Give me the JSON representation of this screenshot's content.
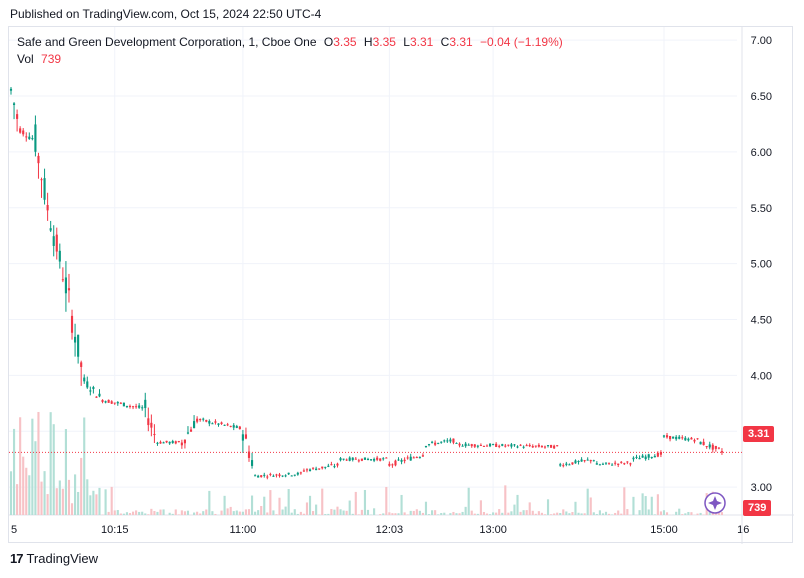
{
  "published": "Published on TradingView.com, Oct 15, 2024 22:50 UTC-4",
  "legend": {
    "symbol": "Safe and Green Development Corporation, 1, Cboe One",
    "o_label": "O",
    "o_value": "3.35",
    "h_label": "H",
    "h_value": "3.35",
    "l_label": "L",
    "l_value": "3.31",
    "c_label": "C",
    "c_value": "3.31",
    "change": "−0.04 (−1.19%)",
    "vol_label": "Vol",
    "vol_value": "739"
  },
  "brand": {
    "name": "TradingView",
    "logo": "17"
  },
  "colors": {
    "up": "#089981",
    "down": "#f23645",
    "up_vol": "#b2dfd6",
    "down_vol": "#f7c2c6",
    "grid": "#f0f3fa",
    "axis_text": "#131722"
  },
  "chart_data": {
    "type": "candlestick",
    "ylim": [
      2.75,
      7.1
    ],
    "y_ticks": [
      "3.00",
      "3.50",
      "4.00",
      "4.50",
      "5.00",
      "5.50",
      "6.00",
      "6.50",
      "7.00"
    ],
    "x_ticks": [
      "5",
      "10:15",
      "11:00",
      "12:03",
      "13:00",
      "15:00",
      "16"
    ],
    "last_price": "3.31",
    "last_volume": "739",
    "x_range": [
      0,
      234
    ],
    "x_tick_positions": [
      0,
      34,
      76,
      124,
      158,
      214,
      240
    ],
    "segments": [
      {
        "from": 0,
        "to": 3,
        "start": 6.55,
        "end": 6.2
      },
      {
        "from": 3,
        "to": 8,
        "start": 6.2,
        "end": 6.1
      },
      {
        "from": 8,
        "to": 12,
        "start": 6.1,
        "end": 5.5
      },
      {
        "from": 12,
        "to": 18,
        "start": 5.5,
        "end": 4.8
      },
      {
        "from": 18,
        "to": 24,
        "start": 4.8,
        "end": 3.95
      },
      {
        "from": 24,
        "to": 30,
        "start": 3.95,
        "end": 3.78
      },
      {
        "from": 30,
        "to": 44,
        "start": 3.78,
        "end": 3.7
      },
      {
        "from": 44,
        "to": 48,
        "start": 3.7,
        "end": 3.4
      },
      {
        "from": 48,
        "to": 56,
        "start": 3.4,
        "end": 3.4
      },
      {
        "from": 56,
        "to": 62,
        "start": 3.4,
        "end": 3.65
      },
      {
        "from": 62,
        "to": 76,
        "start": 3.6,
        "end": 3.52
      },
      {
        "from": 76,
        "to": 80,
        "start": 3.5,
        "end": 3.15
      },
      {
        "from": 80,
        "to": 96,
        "start": 3.1,
        "end": 3.12
      },
      {
        "from": 96,
        "to": 108,
        "start": 3.15,
        "end": 3.2
      },
      {
        "from": 108,
        "to": 124,
        "start": 3.25,
        "end": 3.25
      },
      {
        "from": 124,
        "to": 136,
        "start": 3.2,
        "end": 3.3
      },
      {
        "from": 136,
        "to": 146,
        "start": 3.38,
        "end": 3.42
      },
      {
        "from": 146,
        "to": 180,
        "start": 3.38,
        "end": 3.36
      },
      {
        "from": 180,
        "to": 192,
        "start": 3.2,
        "end": 3.25
      },
      {
        "from": 192,
        "to": 204,
        "start": 3.2,
        "end": 3.22
      },
      {
        "from": 204,
        "to": 214,
        "start": 3.25,
        "end": 3.3
      },
      {
        "from": 214,
        "to": 226,
        "start": 3.45,
        "end": 3.42
      },
      {
        "from": 226,
        "to": 234,
        "start": 3.4,
        "end": 3.31
      }
    ]
  }
}
